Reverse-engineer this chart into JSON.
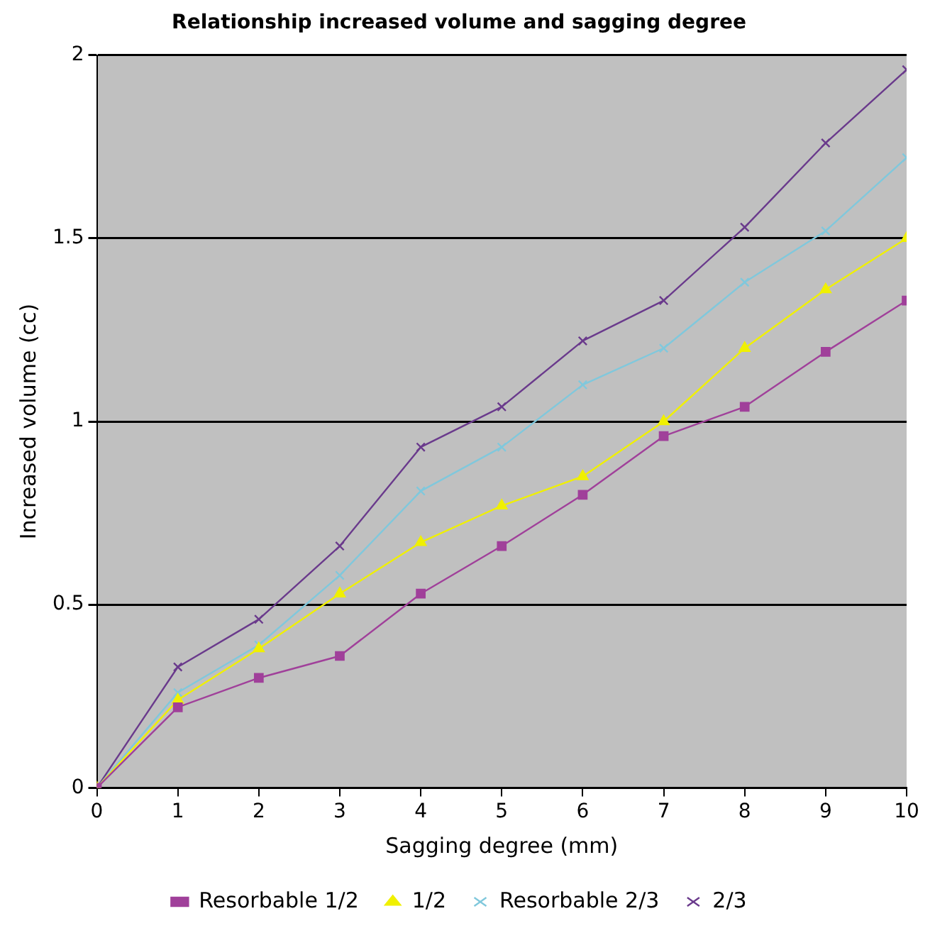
{
  "chart_data": {
    "type": "line",
    "title": "Relationship increased volume and sagging degree",
    "xlabel": "Sagging degree (mm)",
    "ylabel": "Increased volume (cc)",
    "x": [
      0,
      1,
      2,
      3,
      4,
      5,
      6,
      7,
      8,
      9,
      10
    ],
    "series": [
      {
        "name": "Resorbable 1/2",
        "color": "#a0409a",
        "marker": "square",
        "values": [
          0,
          0.22,
          0.3,
          0.36,
          0.53,
          0.66,
          0.8,
          0.96,
          1.04,
          1.19,
          1.33
        ]
      },
      {
        "name": "1/2",
        "color": "#f0f000",
        "marker": "triangle",
        "values": [
          0,
          0.24,
          0.38,
          0.53,
          0.67,
          0.77,
          0.85,
          1.0,
          1.2,
          1.36,
          1.5
        ]
      },
      {
        "name": "Resorbable 2/3",
        "color": "#80c8dc",
        "marker": "cross",
        "values": [
          0,
          0.26,
          0.39,
          0.58,
          0.81,
          0.93,
          1.1,
          1.2,
          1.38,
          1.52,
          1.72
        ]
      },
      {
        "name": "2/3",
        "color": "#6a3a8c",
        "marker": "cross",
        "values": [
          0,
          0.33,
          0.46,
          0.66,
          0.93,
          1.04,
          1.22,
          1.33,
          1.53,
          1.76,
          1.96
        ]
      }
    ],
    "xlim": [
      0,
      10
    ],
    "xticks": [
      0,
      1,
      2,
      3,
      4,
      5,
      6,
      7,
      8,
      9,
      10
    ],
    "ylim": [
      0,
      2
    ],
    "yticks": [
      0,
      0.5,
      1,
      1.5,
      2
    ],
    "grid": "y",
    "legend": "bottom",
    "line_style": "solid"
  }
}
